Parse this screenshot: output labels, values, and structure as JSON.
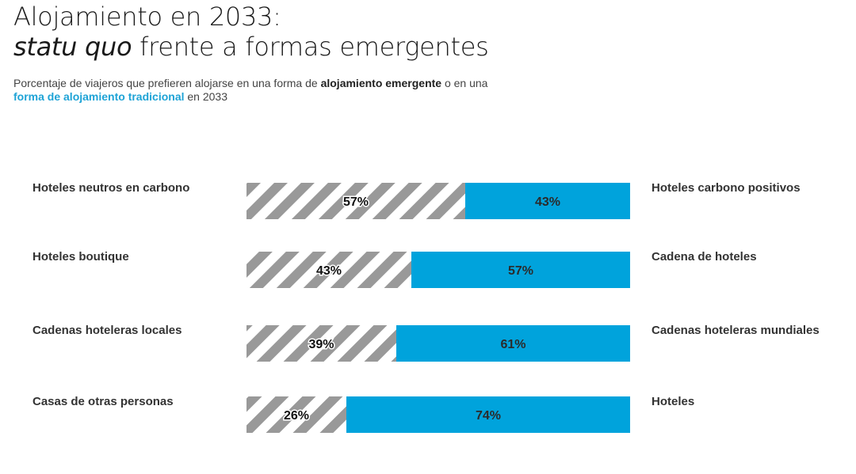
{
  "title": {
    "line1": "Alojamiento en 2033:",
    "line2_italic": "statu quo",
    "line2_rest": " frente a formas emergentes"
  },
  "subtitle": {
    "part1": "Porcentaje de viajeros que prefieren alojarse en una forma de ",
    "bold1": "alojamiento emergente",
    "part2": " o en una ",
    "bold2": "forma de alojamiento tradicional",
    "part3": " en 2033"
  },
  "colors": {
    "emergent_stripe": "#999999",
    "traditional": "#00a3dc",
    "highlight_blue": "#1ea3d6"
  },
  "chart_data": {
    "type": "bar",
    "stacked": true,
    "orientation": "horizontal",
    "scale": [
      0,
      100
    ],
    "categories_left": [
      "Hoteles neutros en carbono",
      "Hoteles boutique",
      "Cadenas hoteleras locales",
      "Casas de otras personas"
    ],
    "categories_right": [
      "Hoteles carbono positivos",
      "Cadena de hoteles",
      "Cadenas hoteleras mundiales",
      "Hoteles"
    ],
    "series": [
      {
        "values": [
          57,
          43,
          39,
          26
        ],
        "labels": [
          "57%",
          "43%",
          "39%",
          "26%"
        ],
        "fill": "striped-gray"
      },
      {
        "values": [
          43,
          57,
          61,
          74
        ],
        "labels": [
          "43%",
          "57%",
          "61%",
          "74%"
        ],
        "fill": "#00a3dc"
      }
    ]
  }
}
